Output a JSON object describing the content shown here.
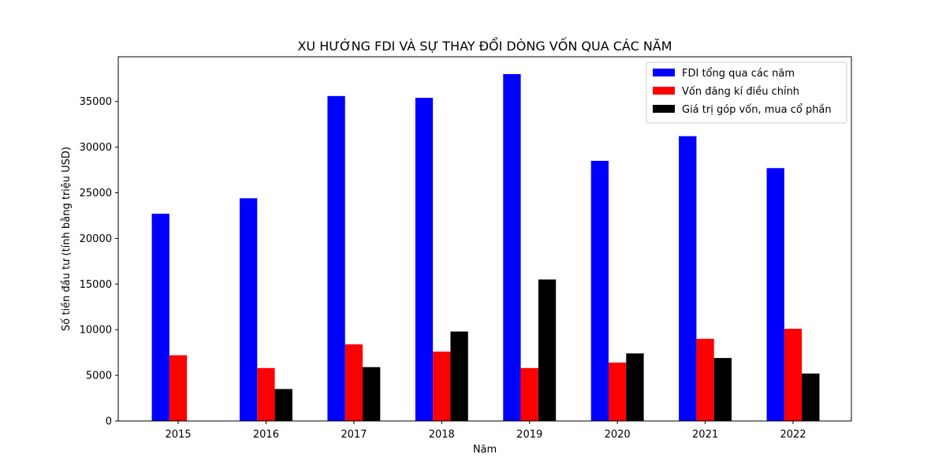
{
  "chart_data": {
    "type": "bar",
    "title": "XU HƯỚNG FDI VÀ SỰ THAY ĐỔI DÒNG VỐN QUA CÁC NĂM",
    "xlabel": "Năm",
    "ylabel": "Số tiền đầu tư (tính bằng triệu USD)",
    "categories": [
      "2015",
      "2016",
      "2017",
      "2018",
      "2019",
      "2020",
      "2021",
      "2022"
    ],
    "series": [
      {
        "name": "FDI tổng qua các năm",
        "color": "#0000ff",
        "values": [
          22700,
          24400,
          35600,
          35400,
          38000,
          28500,
          31200,
          27700
        ]
      },
      {
        "name": "Vốn đăng kí điều chỉnh",
        "color": "#ff0000",
        "values": [
          7200,
          5800,
          8400,
          7600,
          5800,
          6400,
          9000,
          10100
        ]
      },
      {
        "name": "Giá trị góp vốn, mua cổ phần",
        "color": "#000000",
        "values": [
          0,
          3500,
          5900,
          9800,
          15500,
          7400,
          6900,
          5200
        ]
      }
    ],
    "yticks": [
      0,
      5000,
      10000,
      15000,
      20000,
      25000,
      30000,
      35000
    ],
    "ylim": [
      0,
      39900
    ],
    "legend_position": "top-right",
    "grid": false
  }
}
